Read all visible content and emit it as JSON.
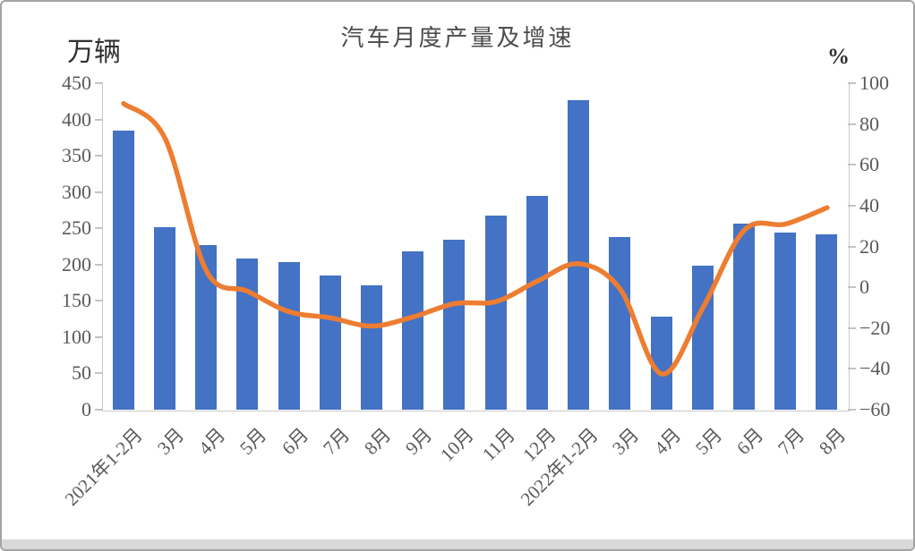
{
  "chart_data": {
    "type": "combo",
    "title": "汽车月度产量及增速",
    "gridlines": false,
    "legend": "none",
    "left_axis": {
      "label": "万辆",
      "min": 0,
      "max": 450,
      "tick_step": 50,
      "tick_labels": [
        "450",
        "400",
        "350",
        "300",
        "250",
        "200",
        "150",
        "100",
        "50",
        "0"
      ]
    },
    "right_axis": {
      "label": "%",
      "min": -60,
      "max": 100,
      "tick_step": 20,
      "tick_labels": [
        "100",
        "80",
        "60",
        "40",
        "20",
        "0",
        "−20",
        "−40",
        "−60"
      ]
    },
    "categories": [
      "2021年1-2月",
      "3月",
      "4月",
      "5月",
      "6月",
      "7月",
      "8月",
      "9月",
      "10月",
      "11月",
      "12月",
      "2022年1-2月",
      "3月",
      "4月",
      "5月",
      "6月",
      "7月",
      "8月"
    ],
    "series": [
      {
        "name": "产量",
        "type": "bar",
        "unit": "万辆",
        "color": "#4472C4",
        "values": [
          385,
          252,
          227,
          208,
          203,
          185,
          172,
          218,
          234,
          267,
          295,
          427,
          238,
          128,
          198,
          257,
          244,
          242
        ]
      },
      {
        "name": "增速",
        "type": "line",
        "unit": "%",
        "color": "#ED7D31",
        "stroke_width": 5.5,
        "values": [
          90,
          73,
          8,
          -2,
          -12,
          -15,
          -19,
          -14.5,
          -8,
          -7,
          3,
          11.5,
          -1,
          -42.5,
          -10,
          28,
          31,
          39
        ]
      }
    ],
    "frame": {
      "border_color": "#a3a3a3",
      "footer_band_color": "#d9d9d9",
      "axis_color": "#c9c9c9",
      "text_color": "#595959"
    }
  }
}
